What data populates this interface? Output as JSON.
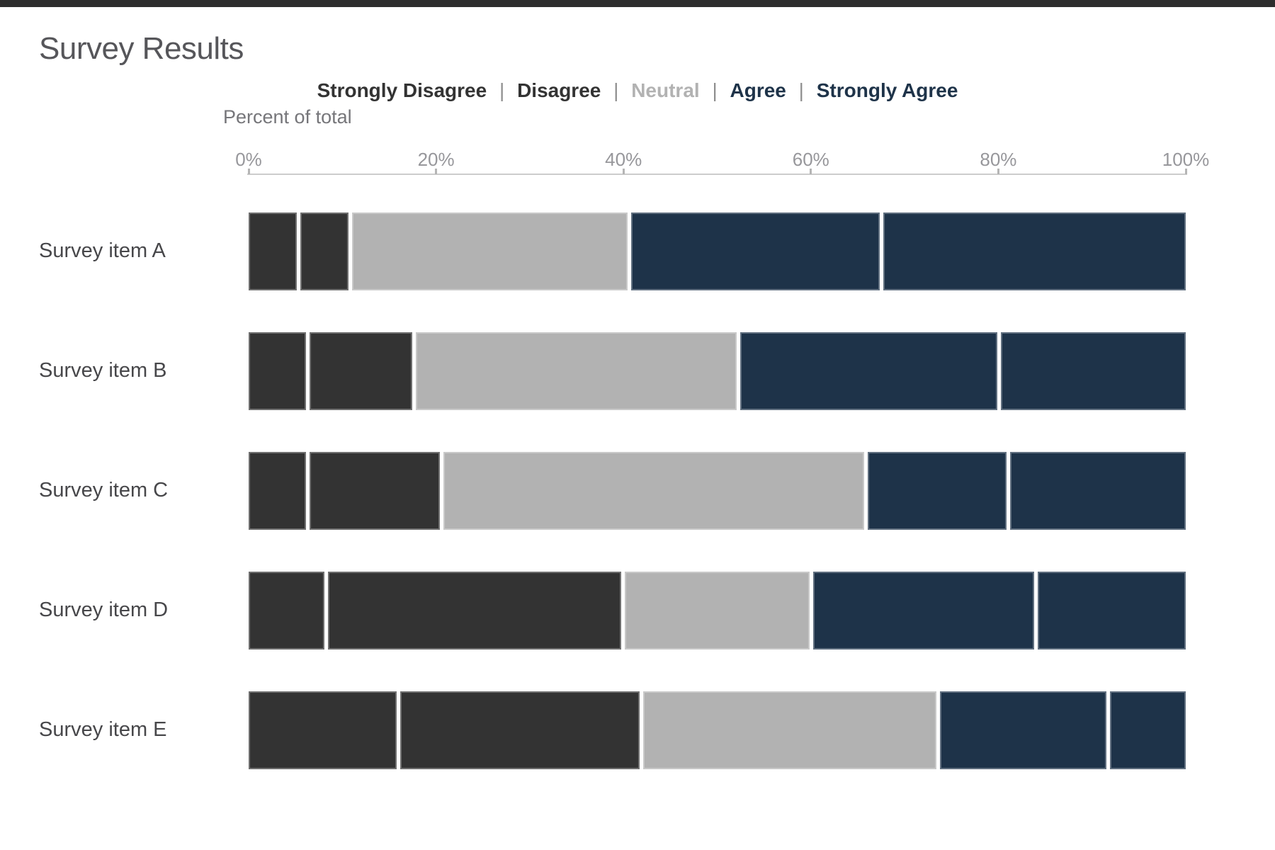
{
  "page": {
    "top_border_color": "#2d2d2d"
  },
  "legend": {
    "separator": "|"
  },
  "axis": {
    "label": "Percent of total",
    "line_color": "#cccccc",
    "tick_color": "#b5b5b5"
  },
  "chart_data": {
    "type": "bar",
    "orientation": "horizontal",
    "stacked": true,
    "stack_total": 100,
    "title": "Survey Results",
    "xlabel": "Percent of total",
    "ylabel": "",
    "xlim": [
      0,
      100
    ],
    "x_tick_labels": [
      "0%",
      "20%",
      "40%",
      "60%",
      "80%",
      "100%"
    ],
    "grid": false,
    "legend_position": "top",
    "categories": [
      "Survey item A",
      "Survey item B",
      "Survey item C",
      "Survey item D",
      "Survey item E"
    ],
    "series": [
      {
        "name": "Strongly Disagree",
        "color": "#333333",
        "values": [
          5,
          6,
          6,
          8,
          16
        ]
      },
      {
        "name": "Disagree",
        "color": "#333333",
        "values": [
          5,
          11,
          14,
          32,
          26
        ]
      },
      {
        "name": "Neutral",
        "color": "#b2b2b2",
        "values": [
          30,
          35,
          46,
          20,
          32
        ]
      },
      {
        "name": "Agree",
        "color": "#1e3349",
        "values": [
          27,
          28,
          15,
          24,
          18
        ]
      },
      {
        "name": "Strongly Agree",
        "color": "#1e3349",
        "values": [
          33,
          20,
          19,
          16,
          8
        ]
      }
    ]
  }
}
